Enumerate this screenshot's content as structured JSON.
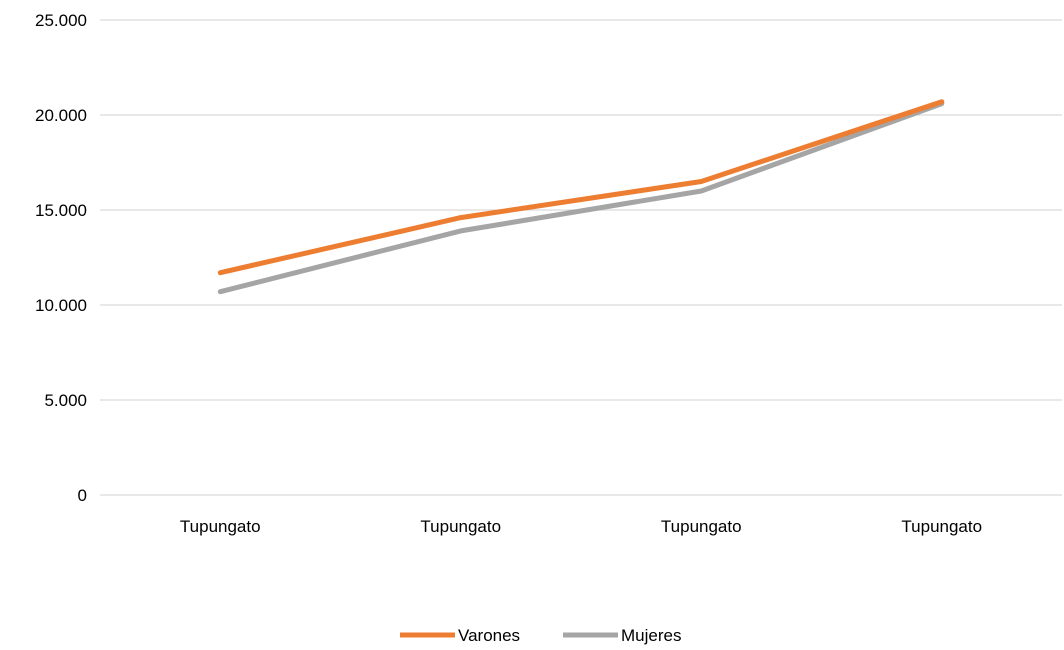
{
  "chart_data": {
    "type": "line",
    "title": "",
    "xlabel": "",
    "ylabel": "",
    "categories": [
      "Tupungato",
      "Tupungato",
      "Tupungato",
      "Tupungato"
    ],
    "series": [
      {
        "name": "Varones",
        "color": "#ed7d31",
        "values": [
          11700,
          14600,
          16500,
          20700
        ]
      },
      {
        "name": "Mujeres",
        "color": "#a5a5a5",
        "values": [
          10700,
          13900,
          16000,
          20600
        ]
      }
    ],
    "ylim": [
      0,
      25000
    ],
    "yticks": [
      {
        "value": 0,
        "label": "0"
      },
      {
        "value": 5000,
        "label": "5.000"
      },
      {
        "value": 10000,
        "label": "10.000"
      },
      {
        "value": 15000,
        "label": "15.000"
      },
      {
        "value": 20000,
        "label": "20.000"
      },
      {
        "value": 25000,
        "label": "25.000"
      }
    ],
    "grid": true,
    "legend": "bottom-center"
  }
}
